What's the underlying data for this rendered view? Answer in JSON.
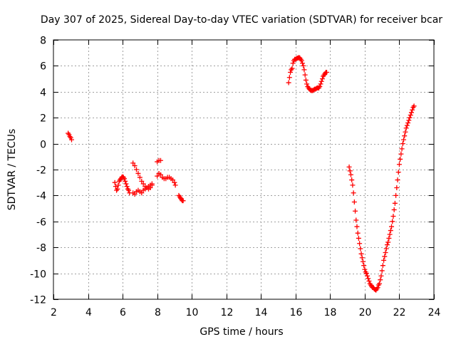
{
  "chart_data": {
    "type": "scatter",
    "title": "Day 307 of 2025, Sidereal Day-to-day VTEC variation (SDTVAR) for receiver bcar",
    "xlabel": "GPS time / hours",
    "ylabel": "SDTVAR / TECUs",
    "xlim": [
      2,
      24
    ],
    "ylim": [
      -12,
      8
    ],
    "xticks": [
      2,
      4,
      6,
      8,
      10,
      12,
      14,
      16,
      18,
      20,
      22,
      24
    ],
    "yticks": [
      -12,
      -10,
      -8,
      -6,
      -4,
      -2,
      0,
      2,
      4,
      6,
      8
    ],
    "grid": true,
    "marker": "+",
    "color": "#ff0000",
    "series": [
      {
        "name": "seg-1",
        "x": [
          2.85,
          2.9,
          2.95,
          3.0,
          3.05
        ],
        "y": [
          0.8,
          0.7,
          0.55,
          0.45,
          0.3
        ]
      },
      {
        "name": "seg-2",
        "x": [
          5.55,
          5.6,
          5.65,
          5.7,
          5.75,
          5.8,
          5.85,
          5.9,
          5.95,
          6.0,
          6.05,
          6.1,
          6.15,
          6.2,
          6.25,
          6.3,
          6.35,
          6.4
        ],
        "y": [
          -3.0,
          -3.3,
          -3.6,
          -3.5,
          -3.2,
          -2.9,
          -2.8,
          -2.7,
          -2.6,
          -2.55,
          -2.6,
          -2.7,
          -2.9,
          -3.1,
          -3.3,
          -3.5,
          -3.6,
          -3.8
        ]
      },
      {
        "name": "seg-3",
        "x": [
          6.6,
          6.7,
          6.8,
          6.9,
          7.0,
          7.1,
          7.2,
          7.3,
          7.4,
          7.5,
          7.6,
          7.7
        ],
        "y": [
          -3.8,
          -3.9,
          -3.7,
          -3.6,
          -3.7,
          -3.8,
          -3.6,
          -3.5,
          -3.4,
          -3.3,
          -3.2,
          -3.1
        ]
      },
      {
        "name": "seg-4",
        "x": [
          6.6,
          6.7,
          6.8,
          6.9,
          7.0,
          7.1,
          7.2,
          7.3,
          7.4,
          7.5,
          7.6,
          7.7
        ],
        "y": [
          -1.5,
          -1.7,
          -2.0,
          -2.3,
          -2.6,
          -2.9,
          -3.1,
          -3.3,
          -3.4,
          -3.5,
          -3.4,
          -3.2
        ]
      },
      {
        "name": "seg-5",
        "x": [
          8.0,
          8.1,
          8.2
        ],
        "y": [
          -1.4,
          -1.3,
          -1.3
        ]
      },
      {
        "name": "seg-6",
        "x": [
          8.0,
          8.1,
          8.2,
          8.3,
          8.4,
          8.5,
          8.6,
          8.7,
          8.8,
          8.9,
          9.0,
          9.05
        ],
        "y": [
          -2.5,
          -2.3,
          -2.4,
          -2.6,
          -2.7,
          -2.7,
          -2.6,
          -2.6,
          -2.7,
          -2.8,
          -3.0,
          -3.2
        ]
      },
      {
        "name": "seg-7",
        "x": [
          9.25,
          9.3,
          9.35,
          9.4,
          9.45,
          9.5
        ],
        "y": [
          -4.0,
          -4.1,
          -4.2,
          -4.3,
          -4.4,
          -4.4
        ]
      },
      {
        "name": "seg-8",
        "x": [
          15.6,
          15.65,
          15.7,
          15.75,
          15.8,
          15.85,
          15.9,
          15.95,
          16.0,
          16.05,
          16.1,
          16.15,
          16.2,
          16.25,
          16.3,
          16.35,
          16.4,
          16.45,
          16.5,
          16.55,
          16.6,
          16.65,
          16.7,
          16.75,
          16.8,
          16.85,
          16.9,
          16.95,
          17.0,
          17.05,
          17.1,
          17.15,
          17.2,
          17.25,
          17.3,
          17.35,
          17.4,
          17.45,
          17.5,
          17.55,
          17.6,
          17.65,
          17.7,
          17.75,
          17.8
        ],
        "y": [
          4.7,
          5.1,
          5.5,
          5.7,
          5.8,
          6.2,
          6.4,
          6.5,
          6.5,
          6.55,
          6.6,
          6.6,
          6.65,
          6.6,
          6.5,
          6.4,
          6.2,
          6.0,
          5.7,
          5.3,
          4.9,
          4.6,
          4.4,
          4.3,
          4.2,
          4.15,
          4.1,
          4.1,
          4.1,
          4.15,
          4.2,
          4.2,
          4.25,
          4.3,
          4.3,
          4.3,
          4.4,
          4.6,
          4.8,
          5.0,
          5.2,
          5.3,
          5.4,
          5.5,
          5.5
        ]
      },
      {
        "name": "seg-9",
        "x": [
          19.1,
          19.15,
          19.2,
          19.25,
          19.3,
          19.35,
          19.4,
          19.45,
          19.5,
          19.55,
          19.6,
          19.65,
          19.7,
          19.75,
          19.8,
          19.85,
          19.9,
          19.95,
          20.0,
          20.05,
          20.1,
          20.15,
          20.2,
          20.25,
          20.3,
          20.35,
          20.4,
          20.45,
          20.5,
          20.55,
          20.6,
          20.65,
          20.7,
          20.75,
          20.8,
          20.85,
          20.9,
          20.95,
          21.0,
          21.05,
          21.1,
          21.15,
          21.2,
          21.25,
          21.3,
          21.35,
          21.4,
          21.45,
          21.5,
          21.55,
          21.6,
          21.65,
          21.7,
          21.75,
          21.8,
          21.85,
          21.9,
          21.95,
          22.0,
          22.05,
          22.1,
          22.15,
          22.2,
          22.25,
          22.3,
          22.35,
          22.4,
          22.45,
          22.5,
          22.55,
          22.6,
          22.65,
          22.7,
          22.75,
          22.8,
          22.85
        ],
        "y": [
          -1.8,
          -2.1,
          -2.4,
          -2.8,
          -3.2,
          -3.8,
          -4.5,
          -5.2,
          -5.9,
          -6.4,
          -6.9,
          -7.3,
          -7.7,
          -8.1,
          -8.5,
          -8.8,
          -9.1,
          -9.4,
          -9.7,
          -9.9,
          -10.0,
          -10.2,
          -10.4,
          -10.6,
          -10.8,
          -10.9,
          -11.0,
          -11.1,
          -11.1,
          -11.2,
          -11.25,
          -11.3,
          -11.2,
          -11.1,
          -10.9,
          -10.8,
          -10.5,
          -10.2,
          -9.8,
          -9.4,
          -9.0,
          -8.7,
          -8.4,
          -8.1,
          -7.8,
          -7.6,
          -7.3,
          -7.0,
          -6.7,
          -6.4,
          -6.0,
          -5.6,
          -5.1,
          -4.6,
          -4.0,
          -3.4,
          -2.8,
          -2.2,
          -1.6,
          -1.2,
          -0.8,
          -0.4,
          0.0,
          0.3,
          0.6,
          0.9,
          1.2,
          1.4,
          1.6,
          1.8,
          2.0,
          2.2,
          2.4,
          2.6,
          2.8,
          2.9
        ]
      }
    ]
  }
}
